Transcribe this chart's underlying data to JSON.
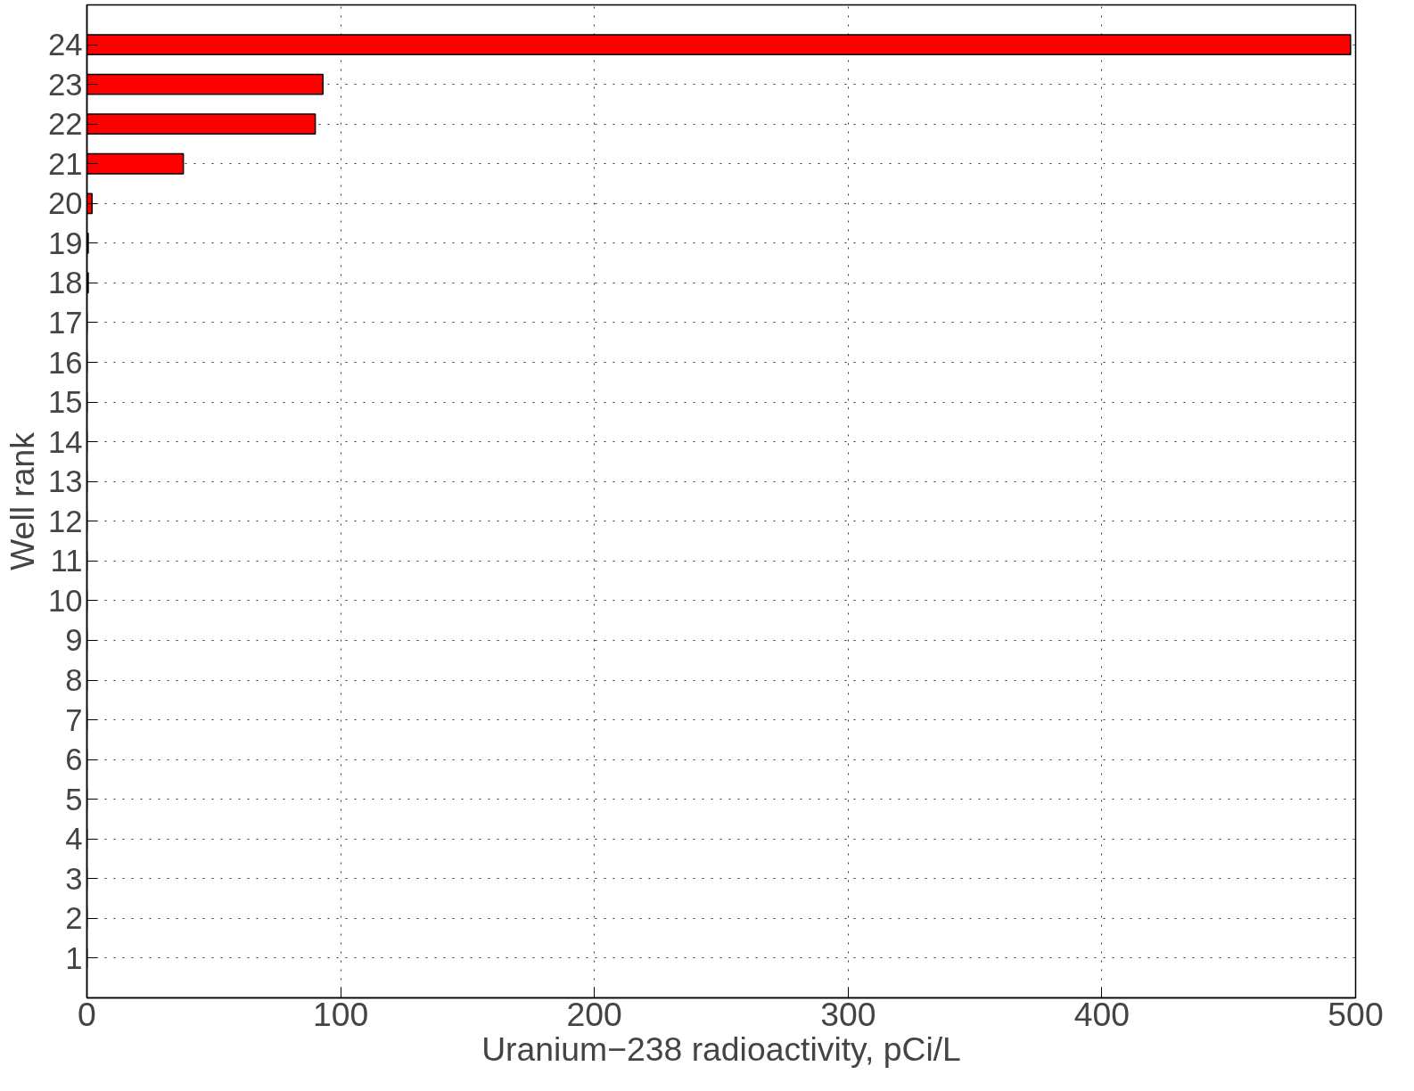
{
  "chart_data": {
    "type": "bar",
    "orientation": "horizontal",
    "xlabel": "Uranium−238 radioactivity, pCi/L",
    "ylabel": "Well rank",
    "categories": [
      "24",
      "23",
      "22",
      "21",
      "20",
      "19",
      "18",
      "17",
      "16",
      "15",
      "14",
      "13",
      "12",
      "11",
      "10",
      "9",
      "8",
      "7",
      "6",
      "5",
      "4",
      "3",
      "2",
      "1"
    ],
    "values": [
      498,
      93,
      90,
      38,
      2,
      0.5,
      0.5,
      0,
      0,
      0,
      0,
      0,
      0,
      0,
      0,
      0,
      0,
      0,
      0,
      0,
      0,
      0,
      0,
      0
    ],
    "color": "#ff0000",
    "xlim": [
      0,
      500
    ],
    "xticks": [
      0,
      100,
      200,
      300,
      400,
      500
    ],
    "grid": true,
    "line_style": "dotted"
  }
}
